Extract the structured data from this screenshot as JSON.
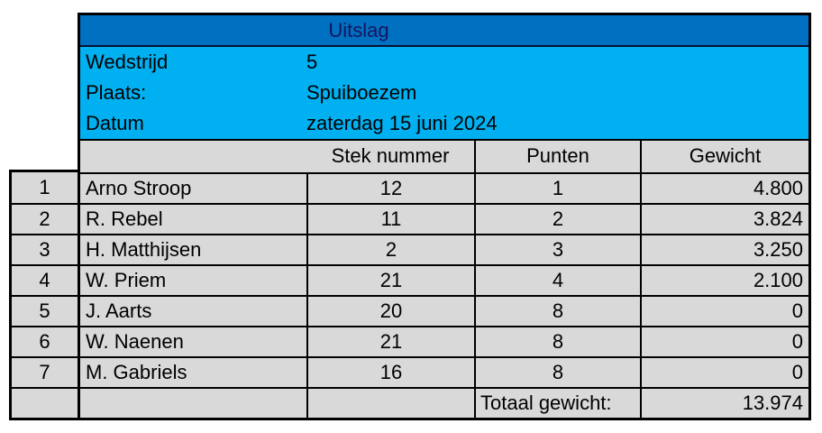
{
  "title": "Uitslag",
  "info": [
    {
      "label": "Wedstrijd",
      "value": "5"
    },
    {
      "label": "Plaats:",
      "value": "Spuiboezem"
    },
    {
      "label": "Datum",
      "value": "zaterdag 15 juni 2024"
    }
  ],
  "columns": {
    "stek": "Stek nummer",
    "punten": "Punten",
    "gewicht": "Gewicht"
  },
  "rows": [
    {
      "rank": "1",
      "name": "Arno Stroop",
      "stek": "12",
      "punten": "1",
      "gewicht": "4.800"
    },
    {
      "rank": "2",
      "name": "R. Rebel",
      "stek": "11",
      "punten": "2",
      "gewicht": "3.824"
    },
    {
      "rank": "3",
      "name": "H. Matthijsen",
      "stek": "2",
      "punten": "3",
      "gewicht": "3.250"
    },
    {
      "rank": "4",
      "name": "W. Priem",
      "stek": "21",
      "punten": "4",
      "gewicht": "2.100"
    },
    {
      "rank": "5",
      "name": "J. Aarts",
      "stek": "20",
      "punten": "8",
      "gewicht": "0"
    },
    {
      "rank": "6",
      "name": "W. Naenen",
      "stek": "21",
      "punten": "8",
      "gewicht": "0"
    },
    {
      "rank": "7",
      "name": "M. Gabriels",
      "stek": "16",
      "punten": "8",
      "gewicht": "0"
    }
  ],
  "total": {
    "label": "Totaal gewicht:",
    "value": "13.974"
  },
  "colors": {
    "dark_blue": "#0070C0",
    "light_blue": "#00B0F0",
    "cell_gray": "#D9D9D9",
    "title_text": "#15155E",
    "border": "#000000"
  }
}
